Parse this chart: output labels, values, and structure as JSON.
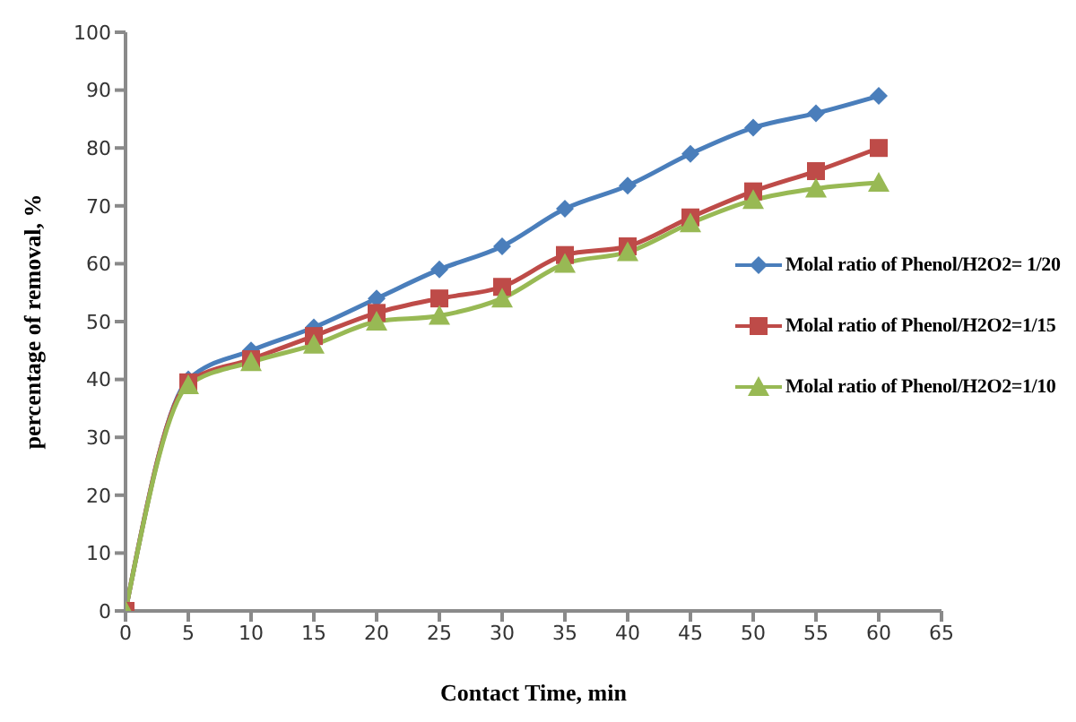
{
  "chart_data": {
    "type": "line",
    "xlabel": "Contact  Time, min",
    "ylabel": "percentage of removal, %",
    "x": [
      0,
      5,
      10,
      15,
      20,
      25,
      30,
      35,
      40,
      45,
      50,
      55,
      60
    ],
    "series": [
      {
        "name": "Molal ratio of Phenol/H2O2= 1/20",
        "color": "#4a7ebb",
        "marker": "diamond",
        "values": [
          0,
          40,
          45,
          49,
          54,
          59,
          63,
          69.5,
          73.5,
          79,
          83.5,
          86,
          89
        ]
      },
      {
        "name": "Molal ratio of Phenol/H2O2=1/15",
        "color": "#be4b48",
        "marker": "square",
        "values": [
          0,
          39.5,
          43.5,
          47.5,
          51.5,
          54,
          56,
          61.5,
          63,
          68,
          72.5,
          76,
          80
        ]
      },
      {
        "name": "Molal ratio of Phenol/H2O2=1/10",
        "color": "#98b954",
        "marker": "triangle",
        "values": [
          0,
          39,
          43,
          46,
          50,
          51,
          54,
          60,
          62,
          67,
          71,
          73,
          74
        ]
      }
    ],
    "xlim": [
      0,
      65
    ],
    "xticks": [
      0,
      5,
      10,
      15,
      20,
      25,
      30,
      35,
      40,
      45,
      50,
      55,
      60,
      65
    ],
    "ylim": [
      0,
      100
    ],
    "yticks": [
      0,
      10,
      20,
      30,
      40,
      50,
      60,
      70,
      80,
      90,
      100
    ],
    "grid": false,
    "legend": "right"
  }
}
